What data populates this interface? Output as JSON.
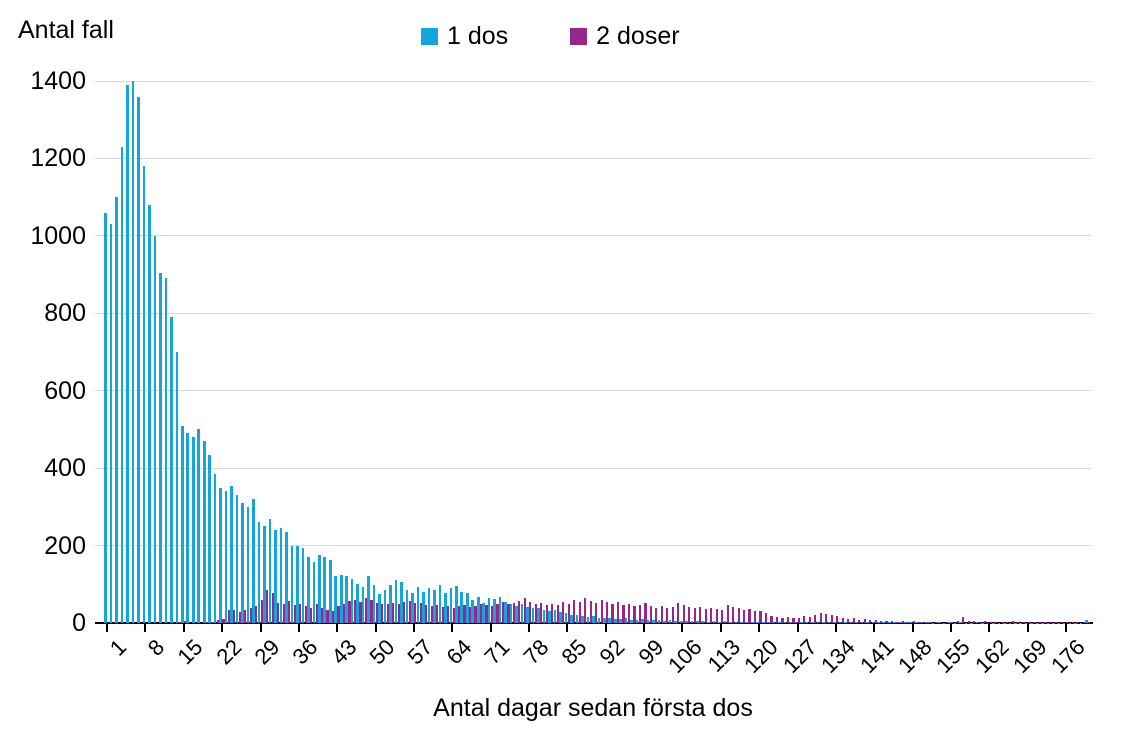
{
  "chart_data": {
    "type": "bar",
    "title": "Antal fall",
    "ylabel": "Antal fall",
    "xlabel": "Antal dagar sedan första dos",
    "ylim": [
      0,
      1400
    ],
    "yticks": [
      0,
      200,
      400,
      600,
      800,
      1000,
      1200,
      1400
    ],
    "x_start": 1,
    "x_step": 1,
    "n_days": 180,
    "xtick_labels": [
      1,
      8,
      15,
      22,
      29,
      36,
      43,
      50,
      57,
      64,
      71,
      78,
      85,
      92,
      99,
      106,
      113,
      120,
      127,
      134,
      141,
      148,
      155,
      162,
      169,
      176
    ],
    "grid": "horizontal-light-gray",
    "legend_position": "top-center",
    "series": [
      {
        "name": "1 dos",
        "color": "#16a4dd",
        "values": [
          1060,
          1030,
          1100,
          1230,
          1390,
          1400,
          1360,
          1180,
          1080,
          1000,
          905,
          890,
          790,
          700,
          510,
          490,
          480,
          500,
          470,
          435,
          385,
          350,
          340,
          355,
          330,
          310,
          300,
          320,
          260,
          250,
          270,
          240,
          245,
          235,
          200,
          198,
          195,
          170,
          158,
          175,
          170,
          164,
          121,
          124,
          121,
          113,
          102,
          94,
          121,
          98,
          74,
          85,
          98,
          111,
          107,
          85,
          77,
          94,
          81,
          90,
          85,
          98,
          77,
          90,
          95,
          81,
          77,
          60,
          68,
          51,
          64,
          61,
          66,
          55,
          50,
          45,
          48,
          42,
          38,
          40,
          34,
          30,
          33,
          28,
          25,
          20,
          22,
          18,
          15,
          18,
          14,
          12,
          14,
          11,
          10,
          12,
          9,
          8,
          10,
          8,
          7,
          8,
          6,
          8,
          6,
          5,
          6,
          5,
          6,
          5,
          4,
          5,
          4,
          5,
          4,
          3,
          4,
          3,
          4,
          3,
          4,
          3,
          3,
          4,
          3,
          3,
          3,
          3,
          4,
          3,
          3,
          3,
          3,
          2,
          3,
          2,
          3,
          2,
          2,
          3,
          2,
          2,
          2,
          2,
          2,
          2,
          2,
          2,
          2,
          2,
          2,
          1,
          2,
          1,
          2,
          1,
          2,
          1,
          1,
          2,
          1,
          1,
          1,
          1,
          1,
          1,
          1,
          1,
          1,
          1,
          1,
          1,
          1,
          1,
          1,
          1,
          1,
          1,
          1,
          8
        ]
      },
      {
        "name": "2 doser",
        "color": "#96278c",
        "values": [
          0,
          0,
          0,
          0,
          0,
          0,
          0,
          0,
          0,
          0,
          0,
          0,
          0,
          2,
          5,
          0,
          0,
          0,
          2,
          3,
          8,
          10,
          34,
          33,
          28,
          34,
          39,
          44,
          60,
          85,
          77,
          53,
          49,
          58,
          47,
          49,
          44,
          39,
          49,
          39,
          34,
          30,
          44,
          49,
          58,
          60,
          55,
          64,
          60,
          53,
          48,
          49,
          53,
          49,
          55,
          58,
          53,
          51,
          47,
          44,
          47,
          42,
          45,
          40,
          44,
          47,
          42,
          45,
          50,
          47,
          44,
          50,
          55,
          50,
          53,
          58,
          64,
          55,
          50,
          53,
          47,
          50,
          47,
          55,
          50,
          60,
          55,
          64,
          58,
          53,
          60,
          55,
          50,
          55,
          47,
          50,
          44,
          47,
          51,
          44,
          40,
          44,
          38,
          42,
          51,
          47,
          42,
          38,
          42,
          36,
          40,
          36,
          33,
          47,
          42,
          38,
          33,
          36,
          30,
          30,
          25,
          17,
          15,
          13,
          15,
          12,
          14,
          17,
          15,
          21,
          26,
          23,
          21,
          17,
          13,
          10,
          12,
          8,
          10,
          8,
          9,
          6,
          5,
          6,
          4,
          5,
          4,
          5,
          4,
          3,
          4,
          3,
          4,
          3,
          4,
          5,
          15,
          6,
          5,
          4,
          5,
          4,
          3,
          4,
          3,
          5,
          4,
          3,
          4,
          2,
          3,
          4,
          2,
          3,
          2,
          3,
          2,
          2,
          3,
          2
        ]
      }
    ],
    "colors": {
      "gridline": "#d9d9d9",
      "axis": "#000000",
      "text": "#000000",
      "background": "#ffffff"
    }
  }
}
